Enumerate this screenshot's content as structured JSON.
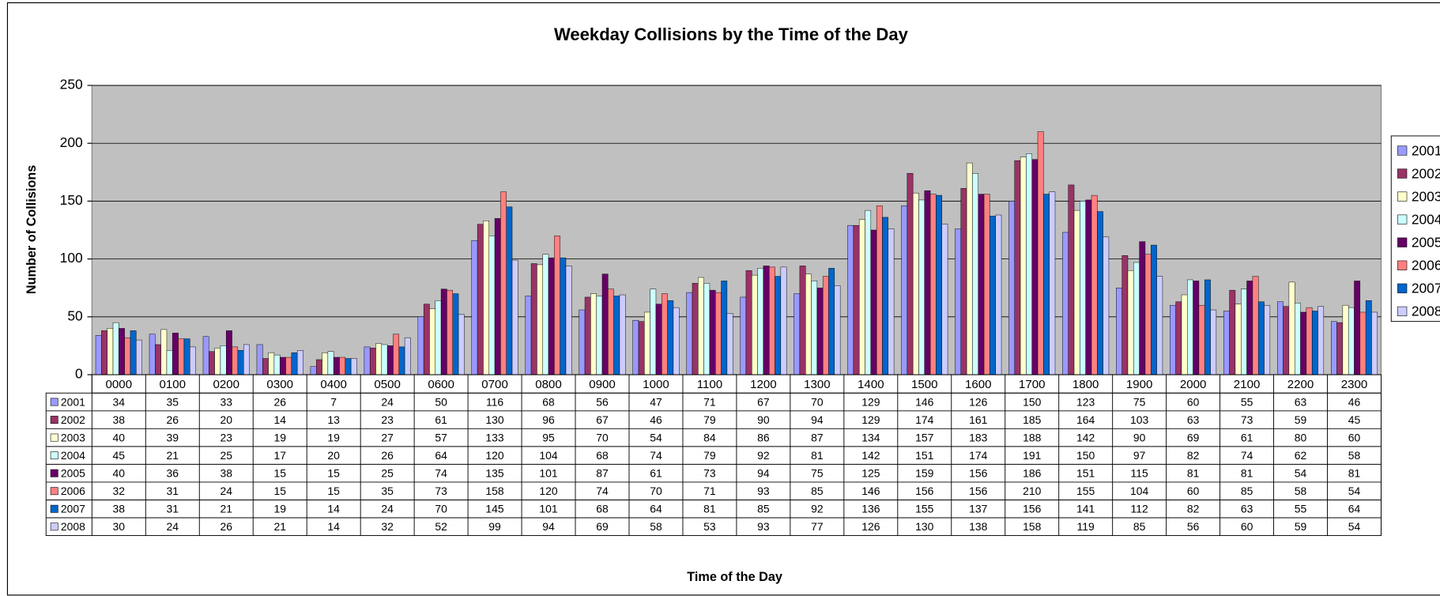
{
  "chart_data": {
    "type": "bar",
    "title": "Weekday Collisions by the Time of the Day",
    "x_label": "Time of the Day",
    "y_label": "Number of Collisions",
    "categories": [
      "0000",
      "0100",
      "0200",
      "0300",
      "0400",
      "0500",
      "0600",
      "0700",
      "0800",
      "0900",
      "1000",
      "1100",
      "1200",
      "1300",
      "1400",
      "1500",
      "1600",
      "1700",
      "1800",
      "1900",
      "2000",
      "2100",
      "2200",
      "2300"
    ],
    "series": [
      {
        "name": "2001",
        "color": "#9999ff",
        "values": [
          34,
          35,
          33,
          26,
          7,
          24,
          50,
          116,
          68,
          56,
          47,
          71,
          67,
          70,
          129,
          146,
          126,
          150,
          123,
          75,
          60,
          55,
          63,
          46
        ]
      },
      {
        "name": "2002",
        "color": "#993366",
        "values": [
          38,
          26,
          20,
          14,
          13,
          23,
          61,
          130,
          96,
          67,
          46,
          79,
          90,
          94,
          129,
          174,
          161,
          185,
          164,
          103,
          63,
          73,
          59,
          45
        ]
      },
      {
        "name": "2003",
        "color": "#ffffcc",
        "values": [
          40,
          39,
          23,
          19,
          19,
          27,
          57,
          133,
          95,
          70,
          54,
          84,
          86,
          87,
          134,
          157,
          183,
          188,
          142,
          90,
          69,
          61,
          80,
          60
        ]
      },
      {
        "name": "2004",
        "color": "#ccffff",
        "values": [
          45,
          21,
          25,
          17,
          20,
          26,
          64,
          120,
          104,
          68,
          74,
          79,
          92,
          81,
          142,
          151,
          174,
          191,
          150,
          97,
          82,
          74,
          62,
          58
        ]
      },
      {
        "name": "2005",
        "color": "#660066",
        "values": [
          40,
          36,
          38,
          15,
          15,
          25,
          74,
          135,
          101,
          87,
          61,
          73,
          94,
          75,
          125,
          159,
          156,
          186,
          151,
          115,
          81,
          81,
          54,
          81
        ]
      },
      {
        "name": "2006",
        "color": "#ff8080",
        "values": [
          32,
          31,
          24,
          15,
          15,
          35,
          73,
          158,
          120,
          74,
          70,
          71,
          93,
          85,
          146,
          156,
          156,
          210,
          155,
          104,
          60,
          85,
          58,
          54
        ]
      },
      {
        "name": "2007",
        "color": "#0066cc",
        "values": [
          38,
          31,
          21,
          19,
          14,
          24,
          70,
          145,
          101,
          68,
          64,
          81,
          85,
          92,
          136,
          155,
          137,
          156,
          141,
          112,
          82,
          63,
          55,
          64
        ]
      },
      {
        "name": "2008",
        "color": "#ccccff",
        "values": [
          30,
          24,
          26,
          21,
          14,
          32,
          52,
          99,
          94,
          69,
          58,
          53,
          93,
          77,
          126,
          130,
          138,
          158,
          119,
          85,
          56,
          60,
          59,
          54
        ]
      }
    ],
    "ylim": [
      0,
      250
    ],
    "yticks": [
      0,
      50,
      100,
      150,
      200,
      250
    ],
    "grid": true,
    "legend": "right",
    "plot_background": "#c0c0c0"
  }
}
